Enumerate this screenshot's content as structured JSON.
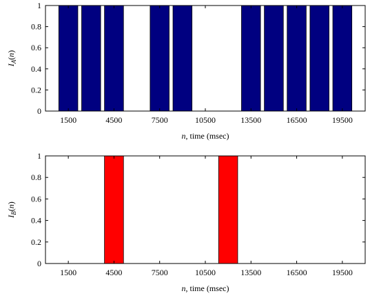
{
  "chart_data": [
    {
      "type": "bar",
      "name": "I_A",
      "x": [
        1500,
        3000,
        4500,
        6000,
        7500,
        9000,
        10500,
        12000,
        13500,
        15000,
        16500,
        18000,
        19500
      ],
      "values": [
        1,
        1,
        1,
        0,
        1,
        1,
        0,
        0,
        1,
        1,
        1,
        1,
        1
      ],
      "bar_width": 1250,
      "color": "#000080",
      "xlim": [
        0,
        21000
      ],
      "ylim": [
        0,
        1
      ],
      "xticks": [
        1500,
        4500,
        7500,
        10500,
        13500,
        16500,
        19500
      ],
      "yticks": [
        0,
        0.2,
        0.4,
        0.6,
        0.8,
        1
      ],
      "xticklabels": [
        "1500",
        "4500",
        "7500",
        "10500",
        "13500",
        "16500",
        "19500"
      ],
      "yticklabels": [
        "0",
        "0.2",
        "0.4",
        "0.6",
        "0.8",
        "1"
      ],
      "xlabel_var": "n",
      "xlabel_rest": ", time (msec)",
      "ylabel_var": "I",
      "ylabel_sub": "A",
      "ylabel_arg": "(n)",
      "grid": false
    },
    {
      "type": "bar",
      "name": "I_B",
      "x": [
        1500,
        3000,
        4500,
        6000,
        7500,
        9000,
        10500,
        12000,
        13500,
        15000,
        16500,
        18000,
        19500
      ],
      "values": [
        0,
        0,
        1,
        0,
        0,
        0,
        0,
        1,
        0,
        0,
        0,
        0,
        0
      ],
      "bar_width": 1250,
      "color": "#ff0000",
      "xlim": [
        0,
        21000
      ],
      "ylim": [
        0,
        1
      ],
      "xticks": [
        1500,
        4500,
        7500,
        10500,
        13500,
        16500,
        19500
      ],
      "yticks": [
        0,
        0.2,
        0.4,
        0.6,
        0.8,
        1
      ],
      "xticklabels": [
        "1500",
        "4500",
        "7500",
        "10500",
        "13500",
        "16500",
        "19500"
      ],
      "yticklabels": [
        "0",
        "0.2",
        "0.4",
        "0.6",
        "0.8",
        "1"
      ],
      "xlabel_var": "n",
      "xlabel_rest": ", time (msec)",
      "ylabel_var": "I",
      "ylabel_sub": "B",
      "ylabel_arg": "(n)",
      "grid": false
    }
  ]
}
